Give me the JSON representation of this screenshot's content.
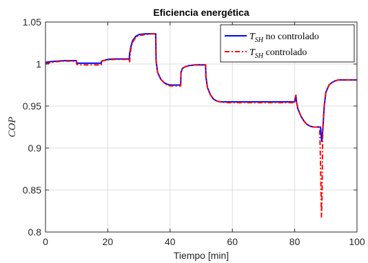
{
  "chart_data": {
    "type": "line",
    "title": "Eficiencia energética",
    "xlabel": "Tiempo [min]",
    "ylabel": "COP",
    "xlim": [
      0,
      100
    ],
    "ylim": [
      0.8,
      1.05
    ],
    "xticks": [
      0,
      20,
      40,
      60,
      80,
      100
    ],
    "yticks": [
      0.8,
      0.85,
      0.9,
      0.95,
      1,
      1.05
    ],
    "xtick_labels": [
      "0",
      "20",
      "40",
      "60",
      "80",
      "100"
    ],
    "ytick_labels": [
      "0.8",
      "0.85",
      "0.9",
      "0.95",
      "1",
      "1.05"
    ],
    "grid": true,
    "legend_position": "top-right",
    "series": [
      {
        "name": "T_SH no controlado",
        "legend_symbol": "T",
        "legend_subscript": "SH",
        "legend_suffix": " no controlado",
        "color": "#0000ff",
        "style": "solid",
        "x": [
          0,
          1,
          2,
          4,
          6,
          8,
          9.9,
          10,
          10.5,
          12,
          14,
          16,
          17.9,
          18,
          18.5,
          20,
          22,
          24,
          26.9,
          27,
          27.5,
          28,
          29,
          30,
          32,
          34,
          35.4,
          35.5,
          36,
          37,
          38,
          39,
          40,
          42,
          43.4,
          43.5,
          44,
          45,
          46,
          48,
          50,
          51.4,
          51.5,
          52,
          53,
          54,
          55,
          56,
          58,
          60,
          65,
          70,
          75,
          80,
          80.2,
          80.4,
          80.6,
          81,
          82,
          83,
          84,
          85,
          86,
          88,
          88.3,
          88.5,
          88.7,
          89,
          89.5,
          90,
          91,
          92,
          93,
          94,
          96,
          98,
          100
        ],
        "y": [
          1.002,
          1.0025,
          1.003,
          1.0035,
          1.004,
          1.004,
          1.004,
          1.0015,
          1.001,
          1.001,
          1.001,
          1.001,
          1.001,
          1.0035,
          1.004,
          1.0055,
          1.006,
          1.006,
          1.006,
          1.012,
          1.022,
          1.028,
          1.033,
          1.035,
          1.036,
          1.036,
          1.036,
          1.004,
          0.99,
          0.982,
          0.978,
          0.976,
          0.975,
          0.975,
          0.975,
          0.99,
          0.995,
          0.997,
          0.998,
          0.999,
          0.999,
          0.999,
          0.985,
          0.972,
          0.963,
          0.958,
          0.956,
          0.955,
          0.955,
          0.955,
          0.955,
          0.955,
          0.955,
          0.955,
          0.96,
          0.962,
          0.955,
          0.947,
          0.938,
          0.932,
          0.928,
          0.926,
          0.925,
          0.925,
          0.925,
          0.915,
          0.908,
          0.92,
          0.95,
          0.966,
          0.975,
          0.978,
          0.98,
          0.981,
          0.981,
          0.981,
          0.981
        ]
      },
      {
        "name": "T_SH controlado",
        "legend_symbol": "T",
        "legend_subscript": "SH",
        "legend_suffix": " controlado",
        "color": "#ff0000",
        "style": "dashdot",
        "x": [
          0,
          1,
          2,
          4,
          6,
          8,
          9.9,
          10,
          10.5,
          12,
          14,
          16,
          17.9,
          18,
          18.5,
          20,
          22,
          24,
          26.8,
          27,
          27.2,
          27.5,
          28,
          29,
          30,
          32,
          34,
          35.4,
          35.5,
          36,
          37,
          38,
          39,
          40,
          42,
          43.4,
          43.5,
          44,
          45,
          46,
          48,
          50,
          51.4,
          51.5,
          52,
          53,
          54,
          55,
          56,
          58,
          60,
          65,
          70,
          75,
          80,
          80.2,
          80.4,
          80.6,
          81,
          82,
          83,
          84,
          85,
          86,
          88,
          88.2,
          88.4,
          88.6,
          88.8,
          89,
          89.5,
          90,
          91,
          92,
          93,
          94,
          96,
          98,
          100
        ],
        "y": [
          1.0,
          1.001,
          1.002,
          1.003,
          1.0035,
          1.0035,
          1.0035,
          1.0,
          0.999,
          0.999,
          0.999,
          0.999,
          0.999,
          1.003,
          1.004,
          1.005,
          1.0055,
          1.0055,
          1.0055,
          1.002,
          1.012,
          1.02,
          1.026,
          1.032,
          1.034,
          1.035,
          1.036,
          1.036,
          1.004,
          0.99,
          0.982,
          0.978,
          0.975,
          0.974,
          0.974,
          0.974,
          0.99,
          0.995,
          0.997,
          0.998,
          0.999,
          0.999,
          0.999,
          0.985,
          0.972,
          0.963,
          0.958,
          0.956,
          0.955,
          0.954,
          0.954,
          0.954,
          0.954,
          0.954,
          0.954,
          0.96,
          0.963,
          0.955,
          0.947,
          0.938,
          0.932,
          0.928,
          0.926,
          0.925,
          0.925,
          0.9,
          0.86,
          0.818,
          0.845,
          0.92,
          0.952,
          0.966,
          0.975,
          0.978,
          0.98,
          0.981,
          0.981,
          0.981,
          0.981
        ]
      }
    ]
  }
}
